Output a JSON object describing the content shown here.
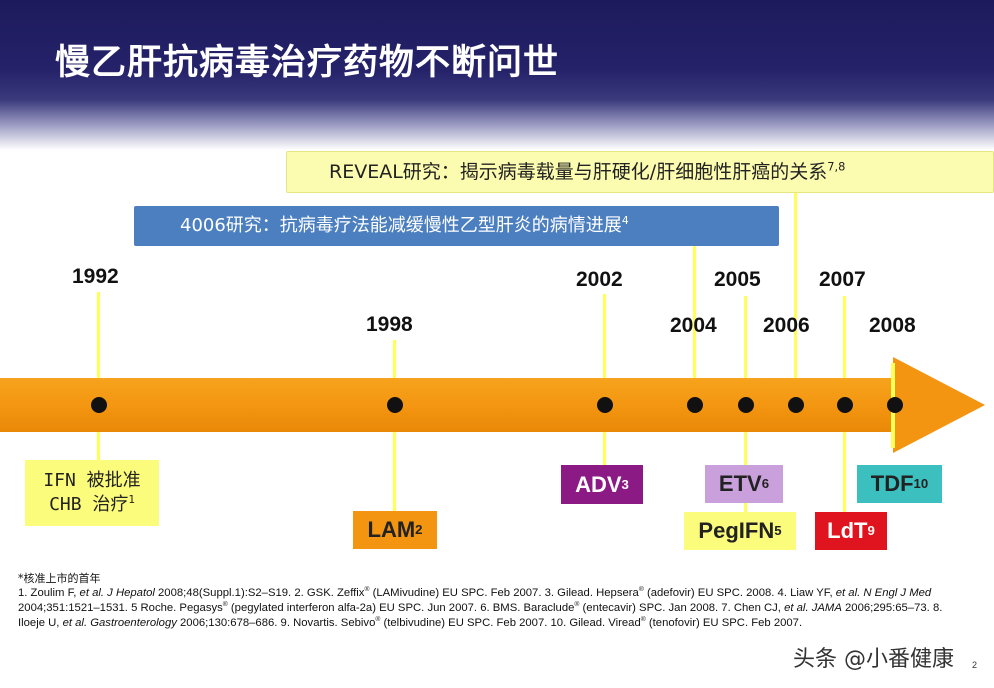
{
  "title": "慢乙肝抗病毒治疗药物不断问世",
  "studies": {
    "reveal": {
      "text": "REVEAL研究：揭示病毒载量与肝硬化/肝细胞性肝癌的关系",
      "sup": "7,8"
    },
    "s4006": {
      "text": "4006研究：抗病毒疗法能减缓慢性乙型肝炎的病情进展",
      "sup": "4"
    }
  },
  "timeline": {
    "years": [
      "1992",
      "1998",
      "2002",
      "2004",
      "2005",
      "2006",
      "2007",
      "2008"
    ],
    "drugs": [
      {
        "name": "IFN 被批准",
        "name2": "CHB 治疗",
        "sup": "1",
        "color": "#fcfc7c"
      },
      {
        "name": "LAM",
        "sup": "2",
        "color": "#f39510"
      },
      {
        "name": "ADV",
        "sup": "3",
        "color": "#8b1a85"
      },
      {
        "name": "ETV",
        "sup": "6",
        "color": "#c9a0dc"
      },
      {
        "name": "PegIFN",
        "sup": "5",
        "color": "#fcfc7c"
      },
      {
        "name": "LdT",
        "sup": "9",
        "color": "#e0141e"
      },
      {
        "name": "TDF",
        "sup": "10",
        "color": "#3bbfbf"
      }
    ]
  },
  "footnote_star": "*核准上市的首年",
  "references": [
    "1. Zoulim F, ",
    "et al. J Hepatol",
    " 2008;48(Suppl.1):S2–S19. 2. GSK. Zeffix",
    "®",
    " (LAMivudine) EU SPC. Feb 2007. 3. Gilead. Hepsera",
    "®",
    " (adefovir) EU SPC. 2008. 4. Liaw YF, ",
    "et al. N Engl J Med",
    " 2004;351:1521–1531. 5 Roche. Pegasys",
    "®",
    " (pegylated interferon alfa-2a) EU SPC. Jun 2007. 6. BMS. Baraclude",
    "®",
    " (entecavir) SPC. Jan 2008. 7. Chen CJ, ",
    "et al. JAMA",
    " 2006;295:65–73. 8. Iloeje U, ",
    "et al. Gastroenterology",
    " 2006;130:678–686. 9. Novartis. Sebivo",
    "®",
    " (telbivudine) EU SPC. Feb 2007. 10. Gilead. Viread",
    "®",
    " (tenofovir) EU SPC. Feb 2007."
  ],
  "watermark": "头条 @小番健康",
  "page_number": "2"
}
